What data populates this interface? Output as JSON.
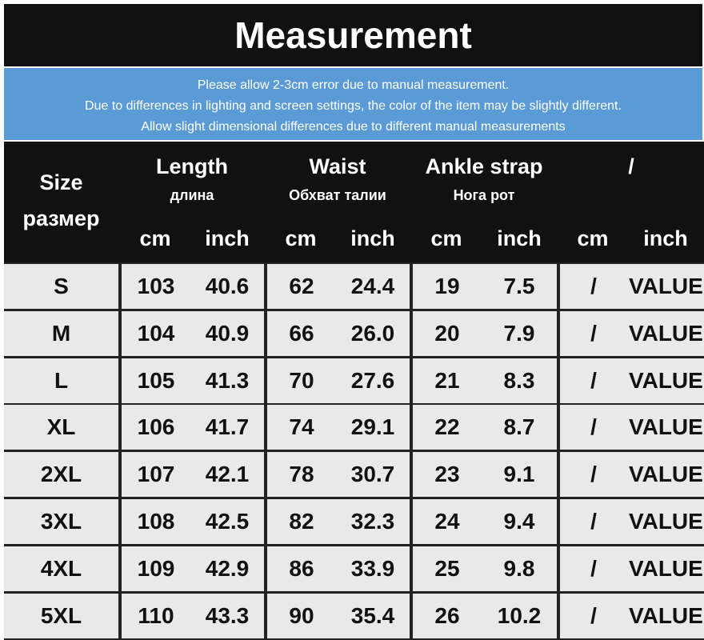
{
  "title": "Measurement",
  "notice": [
    "Please allow 2-3cm error due to manual measurement.",
    "Due to differences in lighting and screen settings, the color of the item may be slightly different.",
    "Allow slight dimensional differences due to different manual measurements"
  ],
  "header": {
    "size": [
      "Size",
      "размер"
    ],
    "groups": [
      {
        "label": "Length",
        "sub": "длина"
      },
      {
        "label": "Waist",
        "sub": "Обхват талии"
      },
      {
        "label": "Ankle strap",
        "sub": "Нога рот"
      },
      {
        "label": "/"
      }
    ],
    "units": [
      "cm",
      "inch",
      "cm",
      "inch",
      "cm",
      "inch",
      "cm",
      "inch"
    ]
  },
  "rows": [
    [
      "S",
      "103",
      "40.6",
      "62",
      "24.4",
      "19",
      "7.5",
      "/",
      "VALUE"
    ],
    [
      "M",
      "104",
      "40.9",
      "66",
      "26.0",
      "20",
      "7.9",
      "/",
      "VALUE"
    ],
    [
      "L",
      "105",
      "41.3",
      "70",
      "27.6",
      "21",
      "8.3",
      "/",
      "VALUE"
    ],
    [
      "XL",
      "106",
      "41.7",
      "74",
      "29.1",
      "22",
      "8.7",
      "/",
      "VALUE"
    ],
    [
      "2XL",
      "107",
      "42.1",
      "78",
      "30.7",
      "23",
      "9.1",
      "/",
      "VALUE"
    ],
    [
      "3XL",
      "108",
      "42.5",
      "82",
      "32.3",
      "24",
      "9.4",
      "/",
      "VALUE"
    ],
    [
      "4XL",
      "109",
      "42.9",
      "86",
      "33.9",
      "25",
      "9.8",
      "/",
      "VALUE"
    ],
    [
      "5XL",
      "110",
      "43.3",
      "90",
      "35.4",
      "26",
      "10.2",
      "/",
      "VALUE"
    ]
  ]
}
